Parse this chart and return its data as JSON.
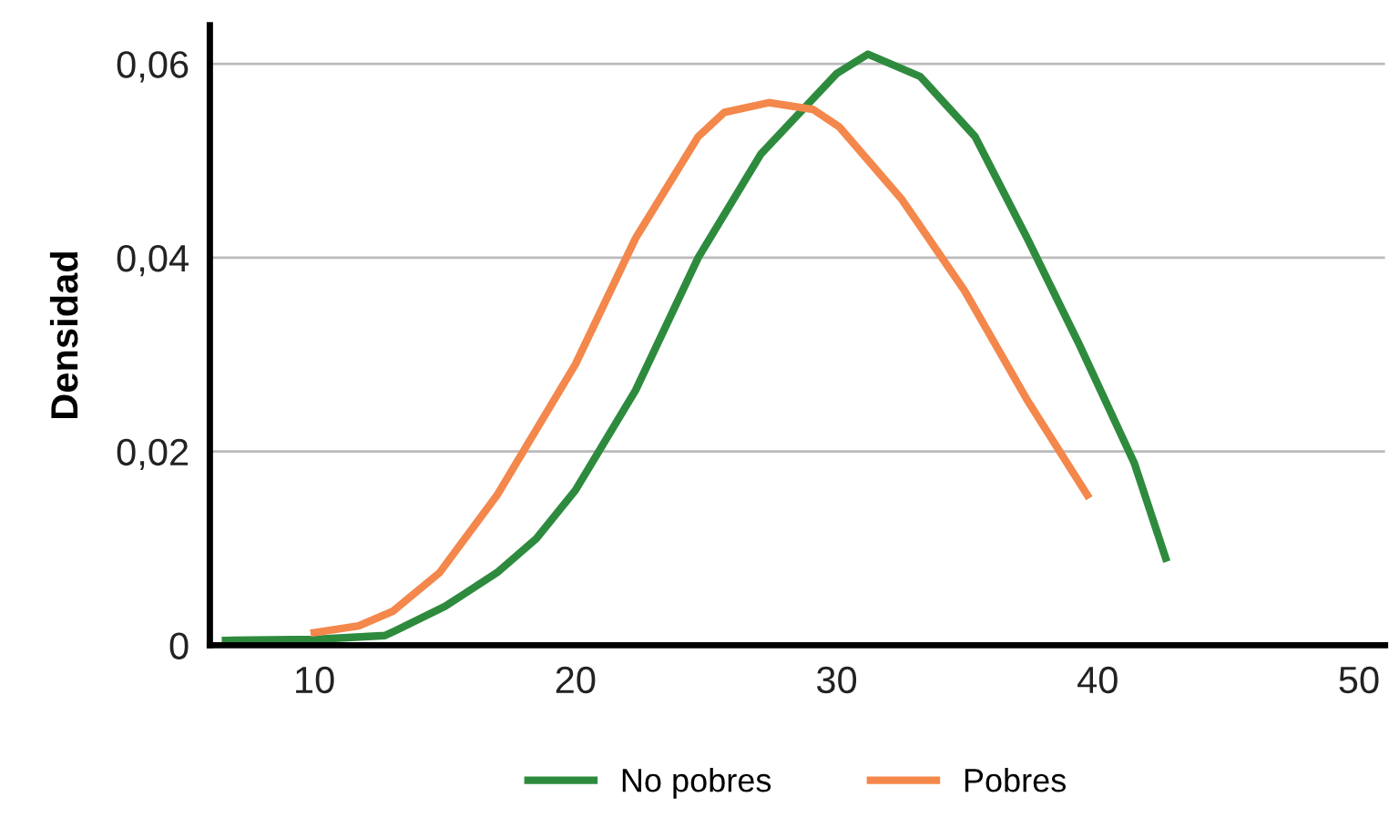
{
  "chart_data": {
    "type": "line",
    "ylabel": "Densidad",
    "xlim": [
      6,
      51
    ],
    "ylim": [
      0,
      0.064
    ],
    "xticks": [
      10,
      20,
      30,
      40,
      50
    ],
    "yticks": [
      {
        "value": 0,
        "label": "0"
      },
      {
        "value": 0.02,
        "label": "0,02"
      },
      {
        "value": 0.04,
        "label": "0,04"
      },
      {
        "value": 0.06,
        "label": "0,06"
      }
    ],
    "grid": "y",
    "legend": "bottom",
    "line_style": "solid",
    "marker": "none",
    "series": [
      {
        "name": "No pobres",
        "color": "#2e8b3e",
        "x": [
          6.6,
          10,
          12.7,
          13.1,
          15,
          17,
          18.5,
          20,
          22.3,
          24.7,
          27.1,
          30,
          31.2,
          33.2,
          35.3,
          37.3,
          39.3,
          41.4,
          42.6
        ],
        "values": [
          0.0005,
          0.0006,
          0.001,
          0.0015,
          0.004,
          0.0075,
          0.011,
          0.016,
          0.0263,
          0.04,
          0.0507,
          0.059,
          0.061,
          0.0587,
          0.0525,
          0.042,
          0.031,
          0.0188,
          0.009
        ]
      },
      {
        "name": "Pobres",
        "color": "#f4874b",
        "x": [
          10,
          11.7,
          13,
          14.8,
          17,
          20,
          22.3,
          24.7,
          25.7,
          27.4,
          29.1,
          30.1,
          32.5,
          34.9,
          37.3,
          39.6
        ],
        "values": [
          0.0013,
          0.002,
          0.0035,
          0.0075,
          0.0155,
          0.029,
          0.042,
          0.0525,
          0.055,
          0.056,
          0.0553,
          0.0535,
          0.046,
          0.0366,
          0.0253,
          0.0155
        ]
      }
    ]
  }
}
